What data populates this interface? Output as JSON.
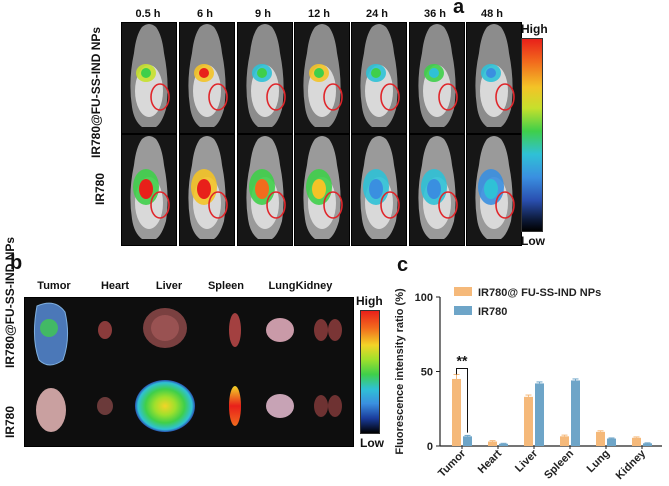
{
  "panel_a": {
    "letter": "a",
    "time_labels": [
      "0.5 h",
      "6 h",
      "9 h",
      "12 h",
      "24 h",
      "36 h",
      "48 h"
    ],
    "row_labels": [
      "IR780@FU-SS-IND NPs",
      "IR780"
    ],
    "colorbar_high": "High",
    "colorbar_low": "Low",
    "colors": {
      "signal_high": "#e8201a",
      "signal_low": "#000000"
    }
  },
  "panel_b": {
    "letter": "b",
    "organ_labels": [
      "Tumor",
      "Heart",
      "Liver",
      "Spleen",
      "Lung",
      "Kidney"
    ],
    "row_labels": [
      "IR780@FU-SS-IND NPs",
      "IR780"
    ],
    "colorbar_high": "High",
    "colorbar_low": "Low"
  },
  "panel_c": {
    "letter": "c",
    "chart_data": {
      "type": "bar",
      "categories": [
        "Tumor",
        "Heart",
        "Liver",
        "Spleen",
        "Lung",
        "Kidney"
      ],
      "series": [
        {
          "name": "IR780@ FU-SS-IND NPs",
          "color": "#f5b97a",
          "values": [
            45,
            3,
            33,
            6.5,
            9.5,
            5.5
          ],
          "errors": [
            3,
            0.6,
            1.2,
            0.8,
            0.7,
            0.6
          ]
        },
        {
          "name": "IR780",
          "color": "#6ea5c8",
          "values": [
            6.5,
            1.5,
            42,
            44,
            5,
            1.8
          ],
          "errors": [
            0.6,
            0.3,
            1,
            1,
            0.4,
            0.3
          ]
        }
      ],
      "ylabel": "Fluorescence intensity ratio (%)",
      "xlabel": "",
      "ylim": [
        0,
        100
      ],
      "yticks": [
        0,
        50,
        100
      ],
      "significance": {
        "label": "**",
        "category": "Tumor"
      },
      "legend": "top-right"
    }
  }
}
